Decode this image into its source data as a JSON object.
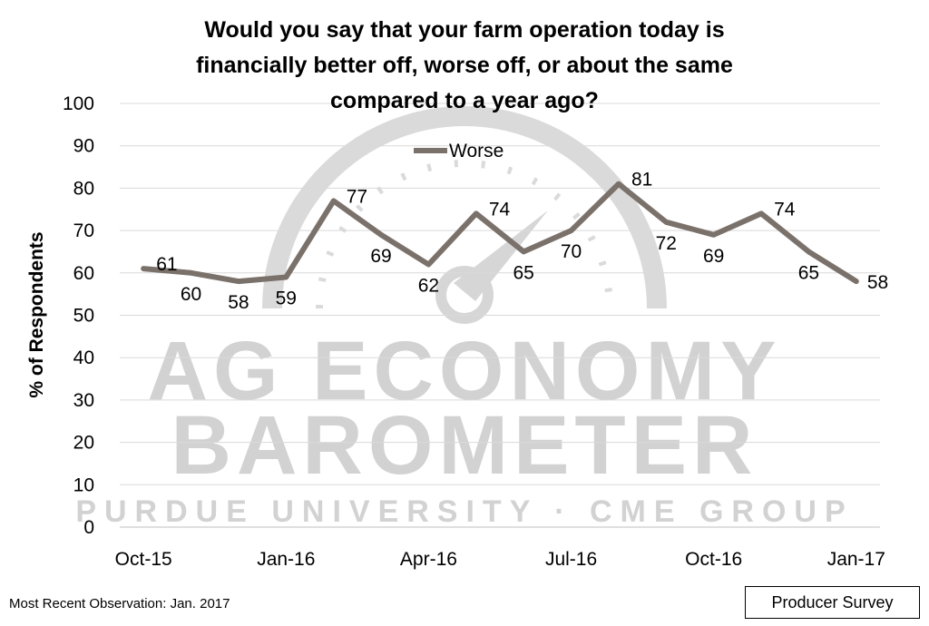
{
  "chart_data": {
    "type": "line",
    "title_lines": [
      "Would you say that your farm operation today is",
      "financially better off, worse off, or about the same",
      "compared to a year ago?"
    ],
    "ylabel": "% of Respondents",
    "xlabel": "",
    "ylim": [
      0,
      100
    ],
    "yticks": [
      "0",
      "10",
      "20",
      "30",
      "40",
      "50",
      "60",
      "70",
      "80",
      "90",
      "100"
    ],
    "x_tick_labels": [
      "Oct-15",
      "Jan-16",
      "Apr-16",
      "Jul-16",
      "Oct-16",
      "Jan-17"
    ],
    "x": [
      "Oct-15",
      "Nov-15",
      "Dec-15",
      "Jan-16",
      "Feb-16",
      "Mar-16",
      "Apr-16",
      "May-16",
      "Jun-16",
      "Jul-16",
      "Aug-16",
      "Sep-16",
      "Oct-16",
      "Nov-16",
      "Dec-16",
      "Jan-17"
    ],
    "series": [
      {
        "name": "Worse",
        "values": [
          61,
          60,
          58,
          59,
          77,
          69,
          62,
          74,
          65,
          70,
          81,
          72,
          69,
          74,
          65,
          58
        ]
      }
    ],
    "grid": true,
    "legend_position": "top-left"
  },
  "colors": {
    "line": "#7b716b",
    "grid": "#d9d9d9",
    "watermark": "#d4d4d4"
  },
  "watermark": {
    "line1": "AG ECONOMY",
    "line2": "BAROMETER",
    "line3": "PURDUE UNIVERSITY · CME GROUP"
  },
  "footnote": "Most Recent Observation: Jan. 2017",
  "source_label": "Producer Survey"
}
